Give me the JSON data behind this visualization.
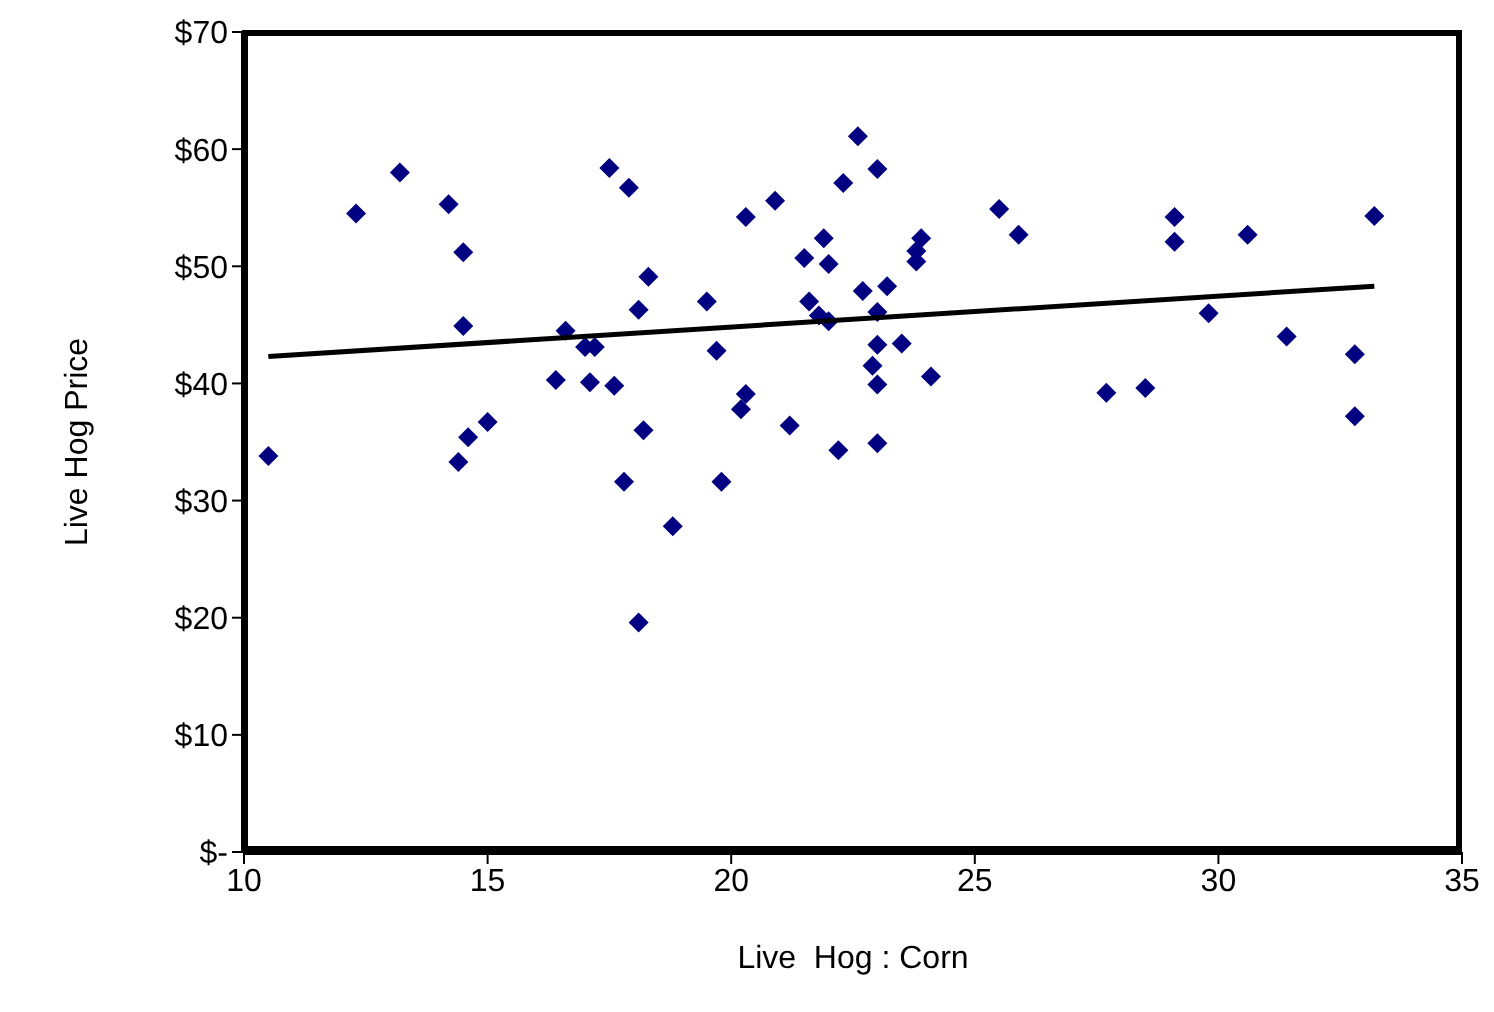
{
  "chart_data": {
    "type": "scatter",
    "xlabel": "Live  Hog : Corn",
    "ylabel": "Live Hog Price",
    "marker": "diamond",
    "line_style": "solid",
    "grid": false,
    "legend": false,
    "xlim": [
      10,
      35
    ],
    "xticks": [
      10,
      15,
      20,
      25,
      30,
      35
    ],
    "ylim": [
      0,
      70
    ],
    "yticks": [
      {
        "value": 0,
        "label": "$-"
      },
      {
        "value": 10,
        "label": "$10"
      },
      {
        "value": 20,
        "label": "$20"
      },
      {
        "value": 30,
        "label": "$30"
      },
      {
        "value": 40,
        "label": "$40"
      },
      {
        "value": 50,
        "label": "$50"
      },
      {
        "value": 60,
        "label": "$60"
      },
      {
        "value": 70,
        "label": "$70"
      }
    ],
    "series": [
      {
        "color": "#000080",
        "x": [
          10.5,
          12.3,
          13.2,
          14.2,
          14.5,
          14.5,
          14.4,
          14.6,
          15.0,
          16.4,
          16.6,
          17.0,
          17.2,
          17.1,
          17.6,
          17.5,
          17.9,
          18.3,
          18.1,
          18.2,
          17.8,
          18.8,
          18.1,
          22.6,
          23.0,
          22.3,
          20.9,
          20.3,
          21.9,
          21.5,
          22.0,
          23.9,
          23.8,
          23.8,
          19.5,
          21.6,
          21.8,
          22.0,
          22.7,
          23.2,
          23.0,
          19.7,
          23.0,
          23.5,
          22.9,
          23.0,
          24.1,
          20.3,
          20.2,
          21.2,
          22.2,
          23.0,
          19.8,
          25.5,
          25.9,
          27.7,
          28.5,
          29.1,
          29.1,
          29.8,
          30.6,
          31.4,
          32.8,
          32.8,
          33.2
        ],
        "values": [
          33.8,
          54.5,
          58.0,
          55.3,
          51.2,
          44.9,
          33.3,
          35.4,
          36.7,
          40.3,
          44.5,
          43.1,
          43.1,
          40.1,
          39.8,
          58.4,
          56.7,
          49.1,
          46.3,
          36.0,
          31.6,
          27.8,
          19.6,
          61.1,
          58.3,
          57.1,
          55.6,
          54.2,
          52.4,
          50.7,
          50.2,
          52.4,
          51.3,
          50.4,
          47.0,
          47.0,
          45.8,
          45.3,
          47.9,
          48.3,
          46.1,
          42.8,
          43.3,
          43.4,
          41.5,
          39.9,
          40.6,
          39.1,
          37.8,
          36.4,
          34.3,
          34.9,
          31.6,
          54.9,
          52.7,
          39.2,
          39.6,
          54.2,
          52.1,
          46.0,
          52.7,
          44.0,
          42.5,
          37.2,
          54.3
        ]
      },
      {
        "type": "line",
        "marker": "none",
        "color": "#000000",
        "x": [
          10.5,
          33.2
        ],
        "values": [
          42.3,
          48.3
        ]
      }
    ]
  }
}
